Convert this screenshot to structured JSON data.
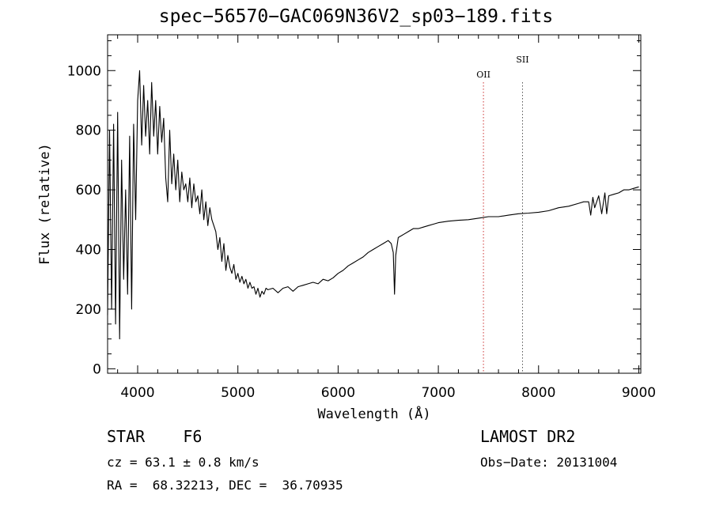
{
  "header": {
    "title": "spec−56570−GAC069N36V2_sp03−189.fits"
  },
  "info": {
    "object": "STAR    F6",
    "cz": "cz = 63.1 ± 0.8 km/s",
    "radec": "RA =  68.32213, DEC =  36.70935",
    "survey": "LAMOST DR2",
    "obsdate": "Obs−Date: 20131004"
  },
  "chart_data": {
    "type": "line",
    "title": "spec−56570−GAC069N36V2_sp03−189.fits",
    "xlabel": "Wavelength (Å)",
    "ylabel": "Flux (relative)",
    "xlim": [
      3700,
      9020
    ],
    "ylim": [
      -15,
      1120
    ],
    "xticks": [
      4000,
      5000,
      6000,
      7000,
      8000,
      9000
    ],
    "yticks": [
      0,
      200,
      400,
      600,
      800,
      1000
    ],
    "grid": false,
    "line_color": "#000000",
    "lines": [
      {
        "label": "OII",
        "x": 7450,
        "color": "#cc3333"
      },
      {
        "label": "SII",
        "x": 7840,
        "color": "#555555"
      }
    ],
    "series": [
      {
        "x": [
          3700,
          3720,
          3740,
          3760,
          3780,
          3800,
          3820,
          3840,
          3860,
          3880,
          3900,
          3920,
          3940,
          3960,
          3980,
          4000,
          4020,
          4040,
          4060,
          4080,
          4100,
          4120,
          4140,
          4160,
          4180,
          4200,
          4220,
          4240,
          4260,
          4280,
          4300,
          4320,
          4340,
          4360,
          4380,
          4400,
          4420,
          4440,
          4460,
          4480,
          4500,
          4520,
          4540,
          4560,
          4580,
          4600,
          4620,
          4640,
          4660,
          4680,
          4700,
          4720,
          4740,
          4760,
          4780,
          4800,
          4820,
          4840,
          4860,
          4880,
          4900,
          4920,
          4940,
          4960,
          4980,
          5000,
          5020,
          5040,
          5060,
          5080,
          5100,
          5120,
          5140,
          5160,
          5180,
          5200,
          5220,
          5240,
          5260,
          5280,
          5300,
          5350,
          5400,
          5450,
          5500,
          5550,
          5600,
          5650,
          5700,
          5750,
          5800,
          5850,
          5900,
          5950,
          6000,
          6050,
          6100,
          6150,
          6200,
          6250,
          6300,
          6350,
          6400,
          6450,
          6500,
          6530,
          6550,
          6563,
          6575,
          6600,
          6650,
          6700,
          6750,
          6800,
          6850,
          6900,
          6950,
          7000,
          7100,
          7200,
          7300,
          7400,
          7500,
          7600,
          7700,
          7800,
          7900,
          8000,
          8100,
          8200,
          8300,
          8400,
          8450,
          8500,
          8520,
          8542,
          8560,
          8600,
          8630,
          8662,
          8680,
          8700,
          8750,
          8800,
          8850,
          8900,
          8950,
          9000
        ],
        "values": [
          180,
          800,
          200,
          820,
          150,
          860,
          100,
          700,
          300,
          600,
          250,
          780,
          200,
          820,
          500,
          900,
          1000,
          750,
          950,
          780,
          900,
          720,
          960,
          780,
          900,
          720,
          880,
          760,
          840,
          640,
          560,
          800,
          620,
          720,
          600,
          700,
          560,
          660,
          600,
          620,
          560,
          640,
          540,
          620,
          560,
          580,
          520,
          600,
          500,
          560,
          480,
          540,
          500,
          480,
          460,
          400,
          440,
          360,
          420,
          330,
          380,
          340,
          320,
          350,
          300,
          320,
          290,
          310,
          285,
          300,
          270,
          290,
          270,
          275,
          250,
          270,
          240,
          260,
          250,
          270,
          265,
          270,
          255,
          270,
          275,
          260,
          275,
          280,
          285,
          290,
          285,
          300,
          295,
          305,
          320,
          330,
          345,
          355,
          365,
          375,
          390,
          400,
          410,
          420,
          430,
          420,
          390,
          250,
          380,
          440,
          450,
          460,
          470,
          470,
          475,
          480,
          485,
          490,
          495,
          498,
          500,
          505,
          510,
          510,
          515,
          520,
          522,
          525,
          530,
          540,
          545,
          555,
          560,
          560,
          515,
          575,
          540,
          580,
          520,
          590,
          520,
          580,
          585,
          590,
          600,
          600,
          605,
          610
        ]
      }
    ]
  }
}
